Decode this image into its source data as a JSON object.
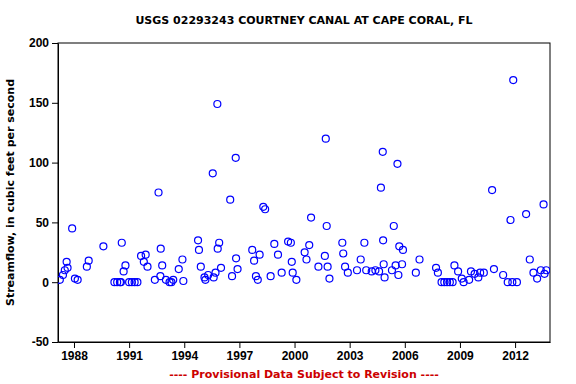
{
  "chart_data": {
    "type": "scatter",
    "title": "USGS 02293243 COURTNEY CANAL AT CAPE CORAL, FL",
    "y_label": "Streamflow, in cubic feet per second",
    "annotations": [
      "---- Provisional Data Subject to Revision ----"
    ],
    "x": [
      1987.23,
      1987.4,
      1987.5,
      1987.6,
      1987.65,
      1987.9,
      1988.05,
      1988.2,
      1988.7,
      1988.8,
      1989.6,
      1990.2,
      1990.35,
      1990.5,
      1990.55,
      1990.6,
      1990.7,
      1990.8,
      1991.0,
      1991.15,
      1991.3,
      1991.45,
      1991.65,
      1991.8,
      1991.9,
      1992.0,
      1992.4,
      1992.6,
      1992.7,
      1992.72,
      1992.8,
      1993.0,
      1993.2,
      1993.3,
      1993.4,
      1993.7,
      1993.9,
      1993.95,
      1994.75,
      1994.8,
      1994.9,
      1995.1,
      1995.15,
      1995.3,
      1995.55,
      1995.6,
      1995.7,
      1995.8,
      1995.82,
      1995.9,
      1996.0,
      1996.5,
      1996.6,
      1996.8,
      1996.82,
      1996.9,
      1997.7,
      1997.8,
      1997.9,
      1998.0,
      1998.1,
      1998.3,
      1998.4,
      1998.7,
      1998.9,
      1999.1,
      1999.3,
      1999.65,
      1999.8,
      1999.85,
      1999.9,
      2000.1,
      2000.55,
      2000.65,
      2000.8,
      2000.9,
      2001.3,
      2001.65,
      2001.7,
      2001.75,
      2001.8,
      2001.9,
      2002.6,
      2002.65,
      2002.75,
      2002.9,
      2003.4,
      2003.6,
      2003.8,
      2003.9,
      2004.2,
      2004.4,
      2004.6,
      2004.7,
      2004.8,
      2004.82,
      2004.85,
      2004.9,
      2005.3,
      2005.4,
      2005.5,
      2005.6,
      2005.65,
      2005.7,
      2005.85,
      2005.9,
      2006.6,
      2006.8,
      2007.7,
      2007.8,
      2008.0,
      2008.15,
      2008.3,
      2008.45,
      2008.6,
      2008.7,
      2008.9,
      2009.1,
      2009.2,
      2009.5,
      2009.6,
      2009.8,
      2010.0,
      2010.1,
      2010.3,
      2010.75,
      2010.85,
      2011.35,
      2011.6,
      2011.75,
      2011.85,
      2011.9,
      2012.1,
      2012.6,
      2012.8,
      2013.0,
      2013.2,
      2013.4,
      2013.55,
      2013.6,
      2013.7
    ],
    "series": [
      {
        "name": "Streamflow",
        "color": "#0000ff",
        "marker": "circle",
        "values": [
          2,
          6,
          10,
          17,
          12,
          45,
          3,
          2,
          13,
          18,
          30,
          0,
          0,
          0,
          0,
          33,
          9,
          14,
          0,
          0,
          0,
          0,
          22,
          17,
          23,
          13,
          2,
          75,
          5,
          28,
          14,
          2,
          0,
          0,
          2,
          11,
          19,
          1,
          35,
          27,
          13,
          4,
          2,
          6,
          91,
          4,
          8,
          149,
          28,
          33,
          12,
          69,
          5,
          104,
          20,
          11,
          27,
          18,
          5,
          2,
          23,
          63,
          61,
          5,
          32,
          23,
          8,
          34,
          33,
          17,
          8,
          2,
          25,
          19,
          31,
          54,
          13,
          22,
          120,
          47,
          13,
          3,
          33,
          24,
          13,
          8,
          10,
          19,
          33,
          10,
          9,
          10,
          9,
          79,
          109,
          35,
          15,
          4,
          10,
          47,
          14,
          99,
          6,
          30,
          15,
          27,
          8,
          19,
          12,
          8,
          0,
          0,
          0,
          0,
          0,
          14,
          9,
          3,
          0,
          2,
          9,
          7,
          4,
          8,
          8,
          77,
          11,
          6,
          0,
          52,
          0,
          169,
          0,
          57,
          19,
          8,
          3,
          10,
          65,
          7,
          10
        ]
      }
    ],
    "xlim": [
      1987.13,
      2013.9
    ],
    "ylim": [
      -50,
      200
    ],
    "xticks": [
      1988,
      1991,
      1994,
      1997,
      2000,
      2003,
      2006,
      2009,
      2012
    ],
    "yticks": [
      -50,
      0,
      50,
      100,
      150,
      200
    ]
  }
}
